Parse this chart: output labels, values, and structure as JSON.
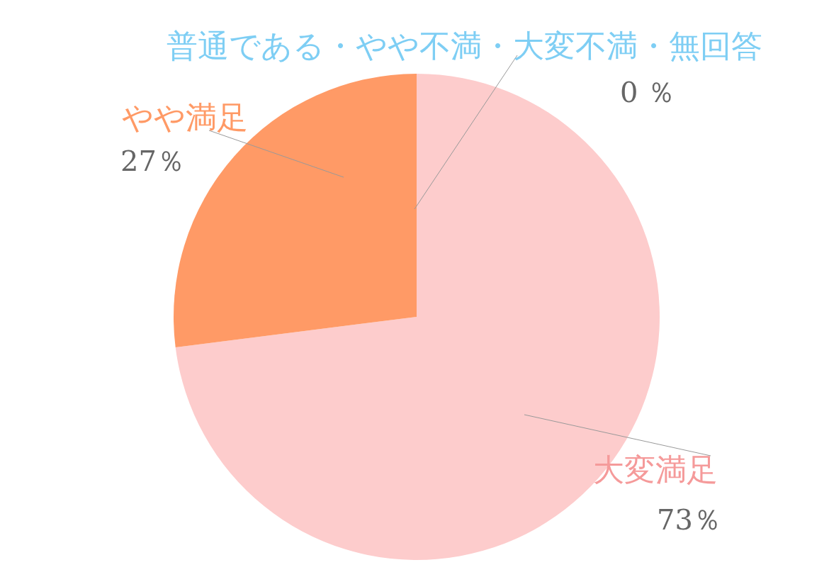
{
  "chart_data": {
    "type": "pie",
    "categories": [
      "大変満足",
      "やや満足",
      "普通である・やや不満・大変不満・無回答"
    ],
    "values": [
      73,
      27,
      0
    ],
    "colors": [
      "#fdcccc",
      "#ff9a66",
      "#7ecef4"
    ],
    "value_labels": [
      "73％",
      "27％",
      "0 ％"
    ],
    "legend": false
  }
}
